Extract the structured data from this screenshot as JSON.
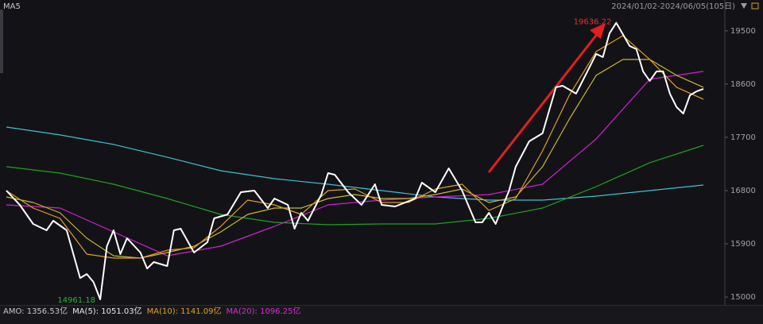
{
  "header": {
    "title": "MA5",
    "range": "2024/01/02-2024/06/05(105日)"
  },
  "footer": [
    {
      "text": "AMO: 1356.53亿",
      "color": "#c8c8c8"
    },
    {
      "text": "MA(5): 1051.03亿",
      "color": "#e8e8e8"
    },
    {
      "text": "MA(10): 1141.09亿",
      "color": "#e0a020"
    },
    {
      "text": "MA(20): 1096.25亿",
      "color": "#d030d0"
    }
  ],
  "chart_data": {
    "type": "line",
    "xlim": [
      0,
      104
    ],
    "ylim": [
      14880,
      19860
    ],
    "yticks": [
      15000,
      15900,
      16800,
      17700,
      18600,
      19500
    ],
    "grid": false,
    "series": [
      {
        "color": "#40c0d0",
        "x": [
          0,
          8,
          16,
          24,
          32,
          40,
          48,
          56,
          64,
          72,
          80,
          88,
          96,
          104
        ],
        "values": [
          17874,
          17740,
          17579,
          17364,
          17135,
          17001,
          16907,
          16800,
          16692,
          16638,
          16638,
          16706,
          16800,
          16894
        ]
      },
      {
        "color": "#22a022",
        "x": [
          0,
          8,
          16,
          24,
          32,
          40,
          48,
          56,
          64,
          72,
          80,
          88,
          96,
          104
        ],
        "values": [
          17203,
          17095,
          16907,
          16665,
          16397,
          16262,
          16222,
          16236,
          16236,
          16330,
          16504,
          16867,
          17270,
          17565
        ]
      },
      {
        "color": "#d020d0",
        "x": [
          0,
          8,
          16,
          24,
          32,
          40,
          48,
          56,
          64,
          72,
          80,
          88,
          96,
          104
        ],
        "values": [
          16558,
          16504,
          16101,
          15698,
          15860,
          16195,
          16558,
          16638,
          16692,
          16732,
          16907,
          17673,
          18680,
          18814
        ]
      },
      {
        "color": "#c8b830",
        "x": [
          0,
          4,
          8,
          12,
          16,
          20,
          24,
          28,
          32,
          36,
          40,
          44,
          48,
          52,
          56,
          60,
          64,
          68,
          72,
          76,
          80,
          84,
          88,
          92,
          96,
          100,
          104
        ],
        "values": [
          16692,
          16598,
          16424,
          15994,
          15698,
          15658,
          15752,
          15860,
          16101,
          16397,
          16504,
          16504,
          16665,
          16732,
          16665,
          16665,
          16732,
          16826,
          16598,
          16692,
          17203,
          18008,
          18747,
          19016,
          19016,
          18747,
          18546
        ]
      },
      {
        "color": "#e0a020",
        "x": [
          0,
          4,
          8,
          12,
          16,
          20,
          24,
          28,
          32,
          36,
          40,
          44,
          48,
          52,
          56,
          60,
          64,
          68,
          72,
          76,
          80,
          84,
          88,
          92,
          96,
          100,
          104
        ],
        "values": [
          16800,
          16504,
          16330,
          15725,
          15658,
          15658,
          15792,
          15833,
          16195,
          16638,
          16558,
          16397,
          16800,
          16826,
          16598,
          16598,
          16826,
          16907,
          16464,
          16665,
          17471,
          18411,
          19150,
          19418,
          19016,
          18546,
          18344
        ]
      },
      {
        "color": "#ffffff",
        "x": [
          0,
          2,
          4,
          6,
          7,
          9,
          11,
          12,
          13,
          14,
          15,
          16,
          17,
          18,
          20,
          21,
          22,
          24,
          25,
          26,
          28,
          30,
          31,
          33,
          35,
          37,
          39,
          40,
          42,
          43,
          44,
          45,
          47,
          48,
          49,
          51,
          53,
          55,
          56,
          58,
          61,
          62,
          64,
          66,
          68,
          70,
          71,
          72,
          73,
          75,
          76,
          78,
          80,
          82,
          83,
          85,
          87,
          88,
          89,
          90,
          91,
          93,
          94,
          95,
          96,
          97,
          98,
          99,
          100,
          101,
          102,
          103,
          104
        ],
        "values": [
          16800,
          16558,
          16236,
          16128,
          16289,
          16128,
          15322,
          15389,
          15255,
          14961.18,
          15860,
          16128,
          15725,
          15994,
          15752,
          15483,
          15591,
          15524,
          16128,
          16155,
          15752,
          15927,
          16330,
          16397,
          16773,
          16800,
          16504,
          16665,
          16558,
          16155,
          16424,
          16289,
          16732,
          17095,
          17068,
          16773,
          16558,
          16907,
          16558,
          16531,
          16665,
          16934,
          16773,
          17176,
          16800,
          16262,
          16262,
          16424,
          16236,
          16800,
          17203,
          17632,
          17767,
          18546,
          18572,
          18438,
          18881,
          19110,
          19056,
          19459,
          19636.22,
          19244,
          19190,
          18814,
          18653,
          18814,
          18814,
          18438,
          18210,
          18102,
          18411,
          18478,
          18519
        ]
      }
    ],
    "annotations": [
      {
        "text": "19636.22",
        "x": 91,
        "y": 19636.22,
        "color": "#e03030"
      },
      {
        "text": "14961.18",
        "x": 14,
        "y": 14961.18,
        "color": "#30b030"
      }
    ]
  }
}
